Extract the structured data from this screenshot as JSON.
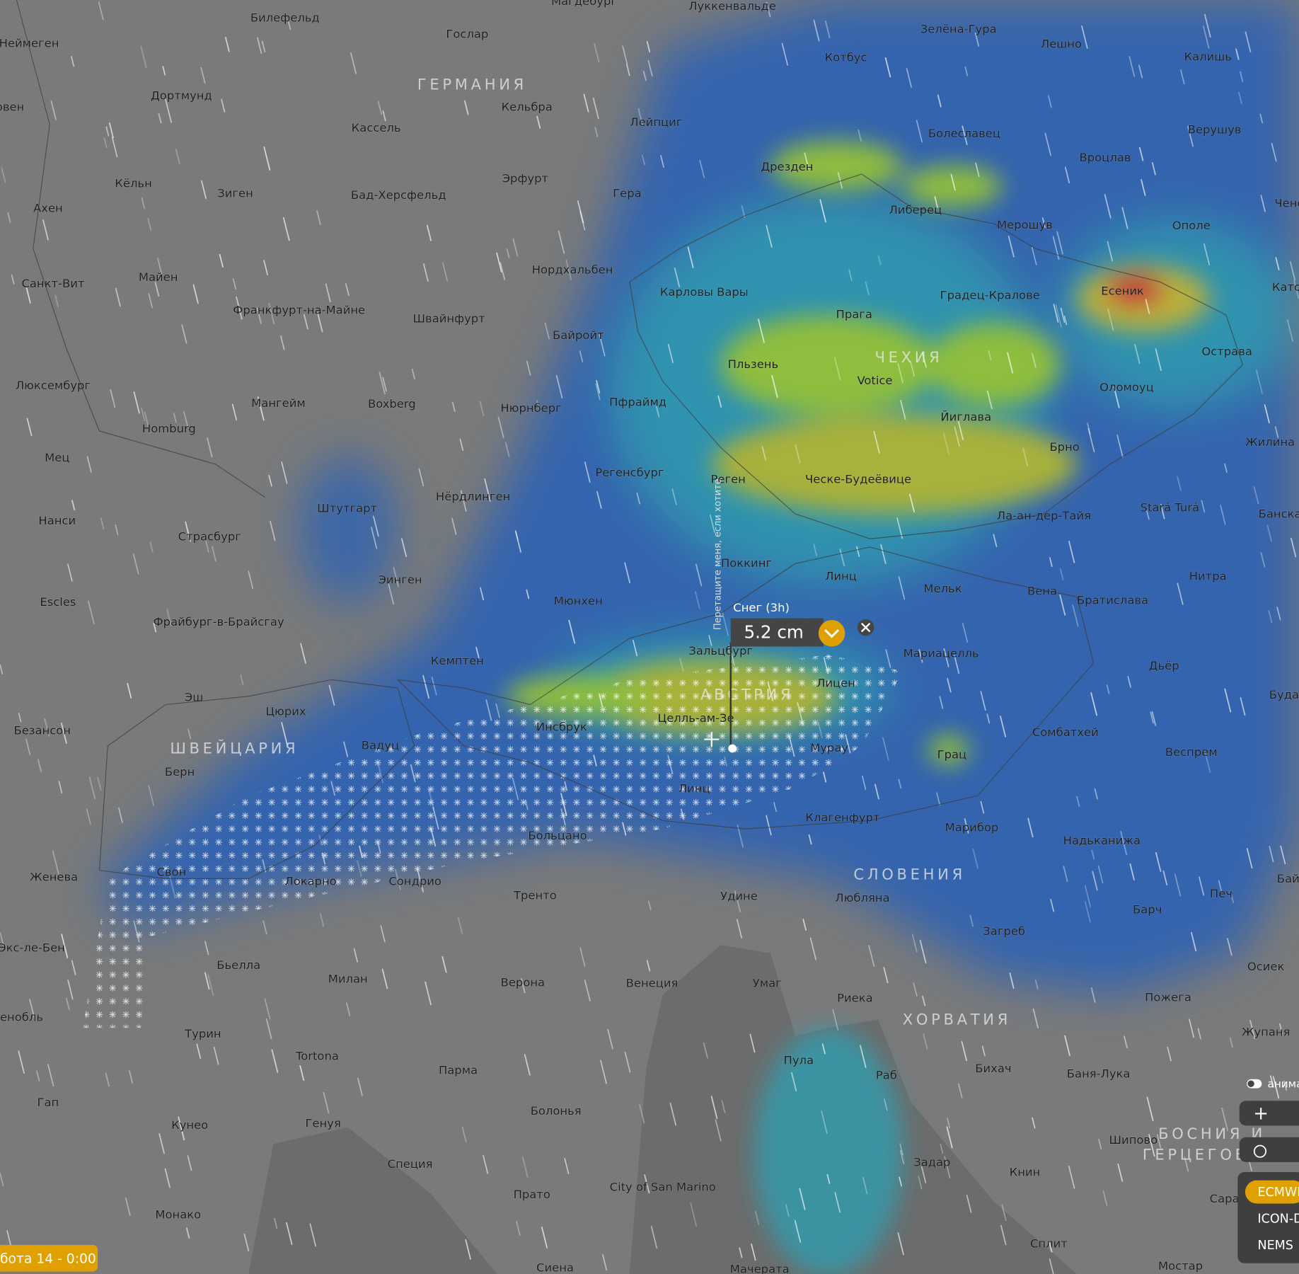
{
  "map": {
    "cities": [
      "Магдебург",
      "Билефельд",
      "Гослар",
      "Луккенвальде",
      "Зелёна-Гура",
      "Лешно",
      "Котбус",
      "Калишь",
      "Неймеген",
      "Дортмунд",
      "Кельбра",
      "овен",
      "Кассель",
      "Лейпциг",
      "Болеславец",
      "Верушув",
      "Вроцлав",
      "Дрезден",
      "Эрфурт",
      "Кёльн",
      "Зиген",
      "Бад-Херсфельд",
      "Гера",
      "Ахен",
      "Либерец",
      "Мерошув",
      "Ополе",
      "Ченс",
      "Санкт-Вит",
      "Майен",
      "Нордхальбен",
      "Карловы Вары",
      "Градец-Кралове",
      "Есеник",
      "Като",
      "Прага",
      "Франкфурт-на-Майне",
      "Швайнфурт",
      "Байройт",
      "Пльзень",
      "Острава",
      "Votice",
      "Люксембург",
      "Оломоуц",
      "Мангейм",
      "Boxberg",
      "Нюрнберг",
      "Пфраймд",
      "Йиглава",
      "Homburg",
      "Брно",
      "Жилина",
      "Мец",
      "Регенсбург",
      "Реген",
      "Ческе-Будеёвице",
      "Нёрдлинген",
      "Штутгарт",
      "Stará Turá",
      "Ла-ан-дер-Тайя",
      "Банска",
      "Нанси",
      "Страсбург",
      "Поккинг",
      "Линц",
      "Нитра",
      "Эинген",
      "Мельк",
      "Вена",
      "Братислава",
      "Мюнхен",
      "Escles",
      "Фрайбург-в-Брайсгау",
      "Зальцбург",
      "Мариацелль",
      "Кемптен",
      "Дьёр",
      "Лицен",
      "Буда",
      "Эш",
      "Цюрих",
      "Целль-ам-Зе",
      "Инсбрук",
      "Безансон",
      "Сомбатхей",
      "Вадуц",
      "Мурау",
      "Грац",
      "Веспрем",
      "Берн",
      "Линц",
      "Клагенфурт",
      "Марибор",
      "Больцано",
      "Надьканижа",
      "Женева",
      "Свон",
      "Локарно",
      "Сондрио",
      "Бай",
      "Тренто",
      "Удине",
      "Любляна",
      "Печ",
      "Барч",
      "Загреб",
      "Экс-ле-Бен",
      "Бьелла",
      "Осиек",
      "Милан",
      "Верона",
      "Венеция",
      "Умаг",
      "Риека",
      "Пожега",
      "енобль",
      "Турин",
      "Жупаня",
      "Tortona",
      "Пула",
      "Парма",
      "Раб",
      "Бихач",
      "Баня-Лука",
      "Гап",
      "Болонья",
      "Кунео",
      "Генуя",
      "Шипово",
      "Задар",
      "Специя",
      "Книн",
      "City of San Marino",
      "Прато",
      "Сара",
      "Монако",
      "Сплит",
      "Мостар",
      "Сиена",
      "Мачерата"
    ],
    "countries": [
      "ГЕРМАНИЯ",
      "ЧЕХИЯ",
      "АВСТРИЯ",
      "ШВЕЙЦАРИЯ",
      "СЛОВЕНИЯ",
      "ХОРВАТИЯ",
      "БОСНИЯ И",
      "ГЕРЦЕГОВ."
    ]
  },
  "popup": {
    "title": "Снег (3h)",
    "value": "5.2 cm",
    "hint": "Перетащите меня, если хотите"
  },
  "timeline": {
    "time": "бота 14 - 0:00"
  },
  "controls": {
    "animation": "анима",
    "zoom_in": "+",
    "models": [
      "ECMWI",
      "ICON-D",
      "NEMS"
    ]
  }
}
